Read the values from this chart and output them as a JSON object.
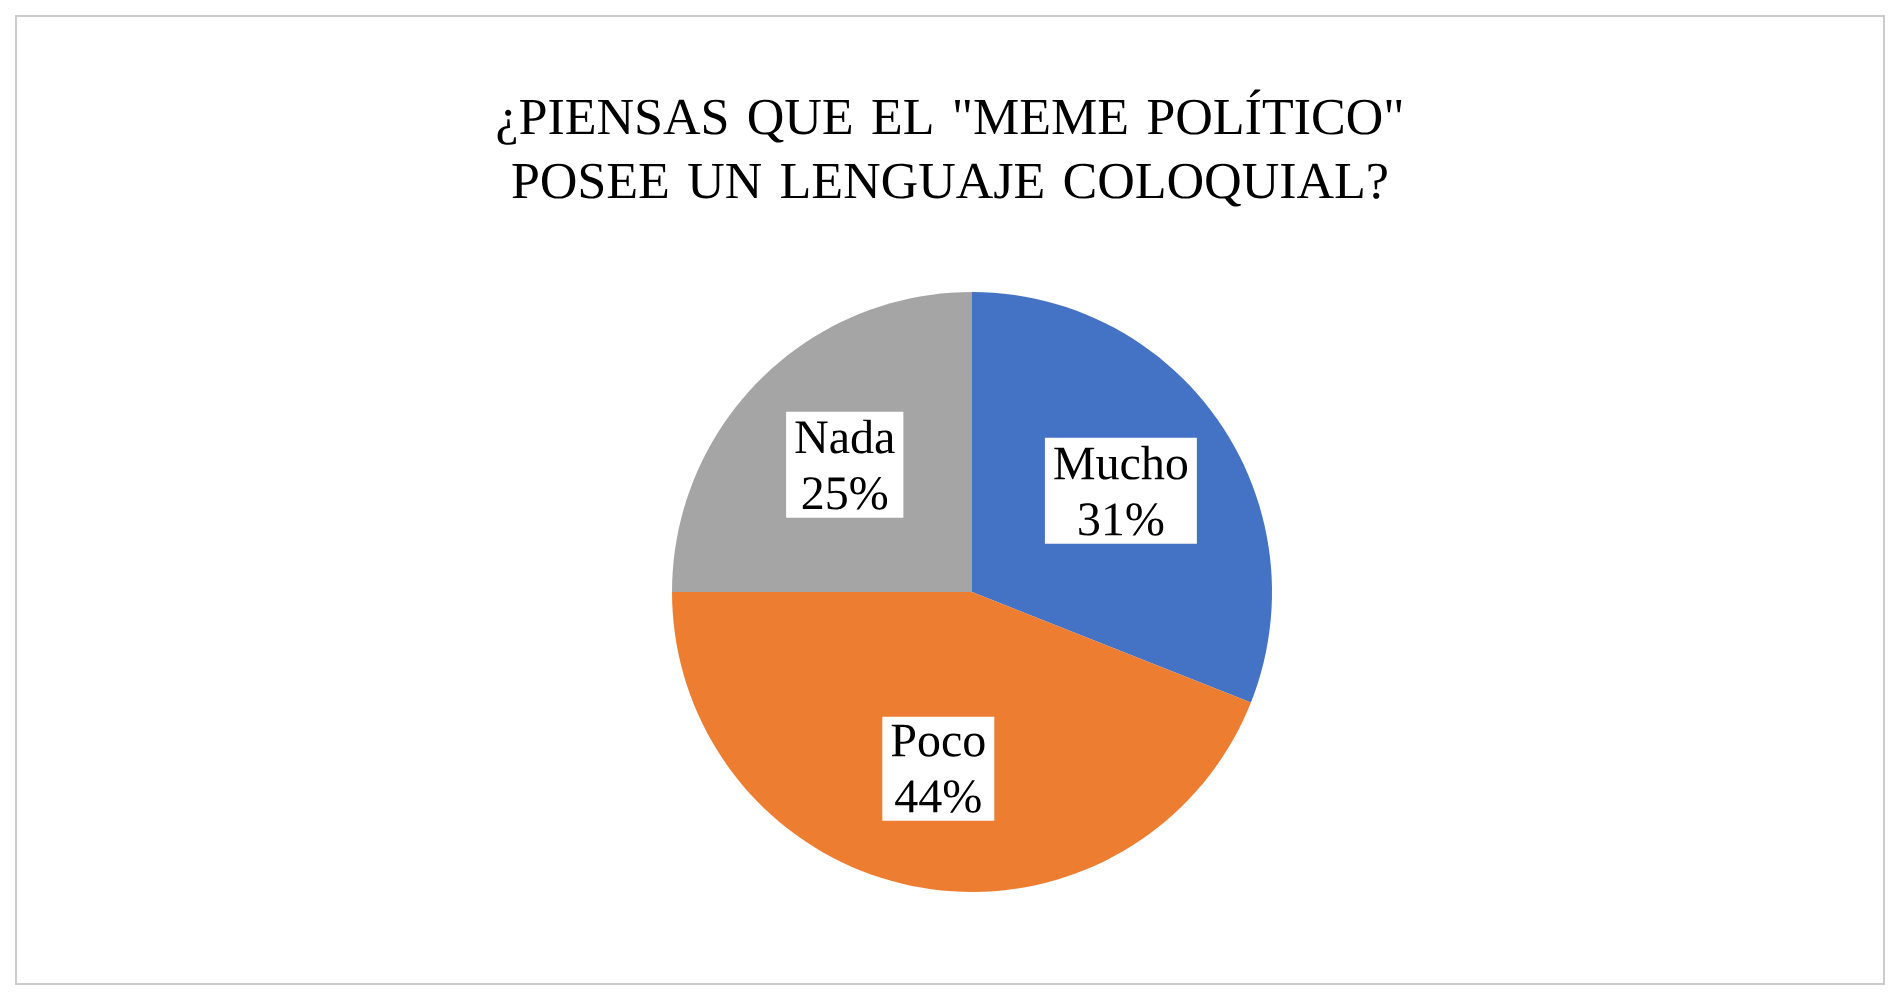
{
  "chart_data": {
    "type": "pie",
    "title": "¿PIENSAS QUE EL \"MEME POLÍTICO\" POSEE UN LENGUAJE COLOQUIAL?",
    "categories": [
      "Mucho",
      "Poco",
      "Nada"
    ],
    "values": [
      31,
      44,
      25
    ],
    "value_labels": [
      "31%",
      "44%",
      "25%"
    ],
    "colors": [
      "#4472c4",
      "#ed7d31",
      "#a5a5a5"
    ]
  }
}
